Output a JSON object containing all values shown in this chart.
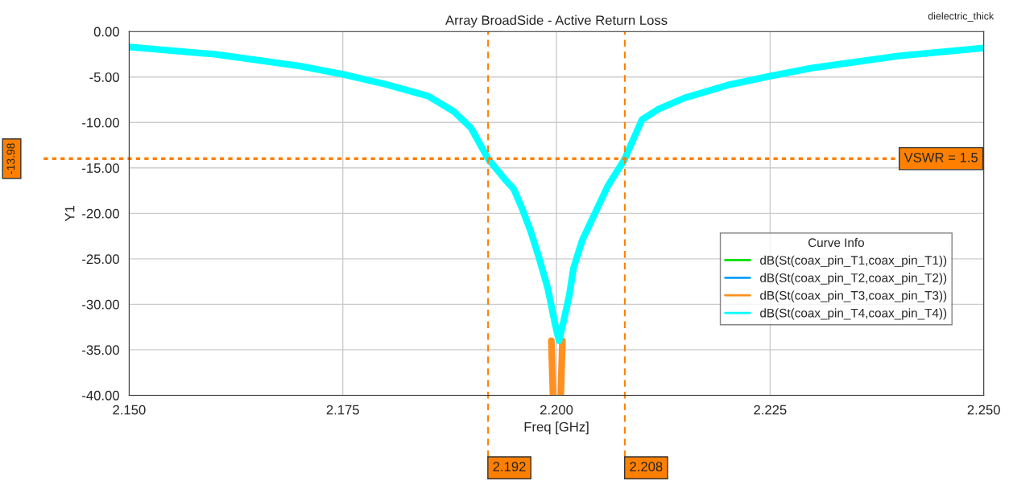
{
  "chart_data": {
    "type": "line",
    "title": "Array BroadSide - Active Return Loss",
    "xlabel": "Freq [GHz]",
    "ylabel": "Y1",
    "legend_title": "Curve Info",
    "annotations": [
      "dielectric_thick",
      {
        "text": "VSWR = 1.5",
        "x": 2.245,
        "y": -13.98
      }
    ],
    "xlim": [
      2.15,
      2.25
    ],
    "ylim": [
      -40,
      0
    ],
    "xticks": [
      {
        "value": 2.15,
        "label": "2.150"
      },
      {
        "value": 2.175,
        "label": "2.175"
      },
      {
        "value": 2.2,
        "label": "2.200"
      },
      {
        "value": 2.225,
        "label": "2.225"
      },
      {
        "value": 2.25,
        "label": "2.250"
      }
    ],
    "yticks": [
      {
        "value": 0,
        "label": "0.00"
      },
      {
        "value": -5,
        "label": "-5.00"
      },
      {
        "value": -10,
        "label": "-10.00"
      },
      {
        "value": -15,
        "label": "-15.00"
      },
      {
        "value": -20,
        "label": "-20.00"
      },
      {
        "value": -25,
        "label": "-25.00"
      },
      {
        "value": -30,
        "label": "-30.00"
      },
      {
        "value": -35,
        "label": "-35.00"
      },
      {
        "value": -40,
        "label": "-40.00"
      }
    ],
    "grid": true,
    "legend": "right",
    "marker": "none",
    "line_style": "solid",
    "ref_lines": [
      {
        "axis": "x",
        "value": 2.192,
        "label": "2.192",
        "color": "#ff8000",
        "line_style": "dashed"
      },
      {
        "axis": "x",
        "value": 2.208,
        "label": "2.208",
        "color": "#ff8000",
        "line_style": "dashed"
      },
      {
        "axis": "y",
        "value": -13.98,
        "label": "-13.98",
        "color": "#ff8000",
        "line_style": "dotted"
      }
    ],
    "series": [
      {
        "name": "dB(St(coax_pin_T1,coax_pin_T1))",
        "color": "#00e000"
      },
      {
        "name": "dB(St(coax_pin_T2,coax_pin_T2))",
        "color": "#00a0ff"
      },
      {
        "name": "dB(St(coax_pin_T3,coax_pin_T3))",
        "color": "#ff9020",
        "x": [
          2.1994,
          2.1996,
          2.2,
          2.2005,
          2.2007
        ],
        "values": [
          -34,
          -40,
          null,
          -40,
          -34
        ]
      },
      {
        "name": "dB(St(coax_pin_T4,coax_pin_T4))",
        "color": "#00ffff",
        "x": [
          2.15,
          2.16,
          2.17,
          2.175,
          2.18,
          2.185,
          2.188,
          2.19,
          2.192,
          2.194,
          2.195,
          2.196,
          2.197,
          2.198,
          2.199,
          2.1998,
          2.2003,
          2.2008,
          2.2015,
          2.202,
          2.203,
          2.204,
          2.205,
          2.206,
          2.208,
          2.21,
          2.212,
          2.215,
          2.22,
          2.225,
          2.23,
          2.24,
          2.25
        ],
        "values": [
          -1.7,
          -2.5,
          -3.8,
          -4.7,
          -5.8,
          -7.1,
          -8.8,
          -10.6,
          -14,
          -16.3,
          -17.3,
          -19.5,
          -22,
          -25,
          -28.3,
          -32,
          -34,
          -32,
          -29,
          -26,
          -23,
          -21,
          -19,
          -17,
          -14,
          -9.7,
          -8.5,
          -7.3,
          -5.9,
          -4.9,
          -4,
          -2.7,
          -1.8
        ]
      }
    ]
  }
}
